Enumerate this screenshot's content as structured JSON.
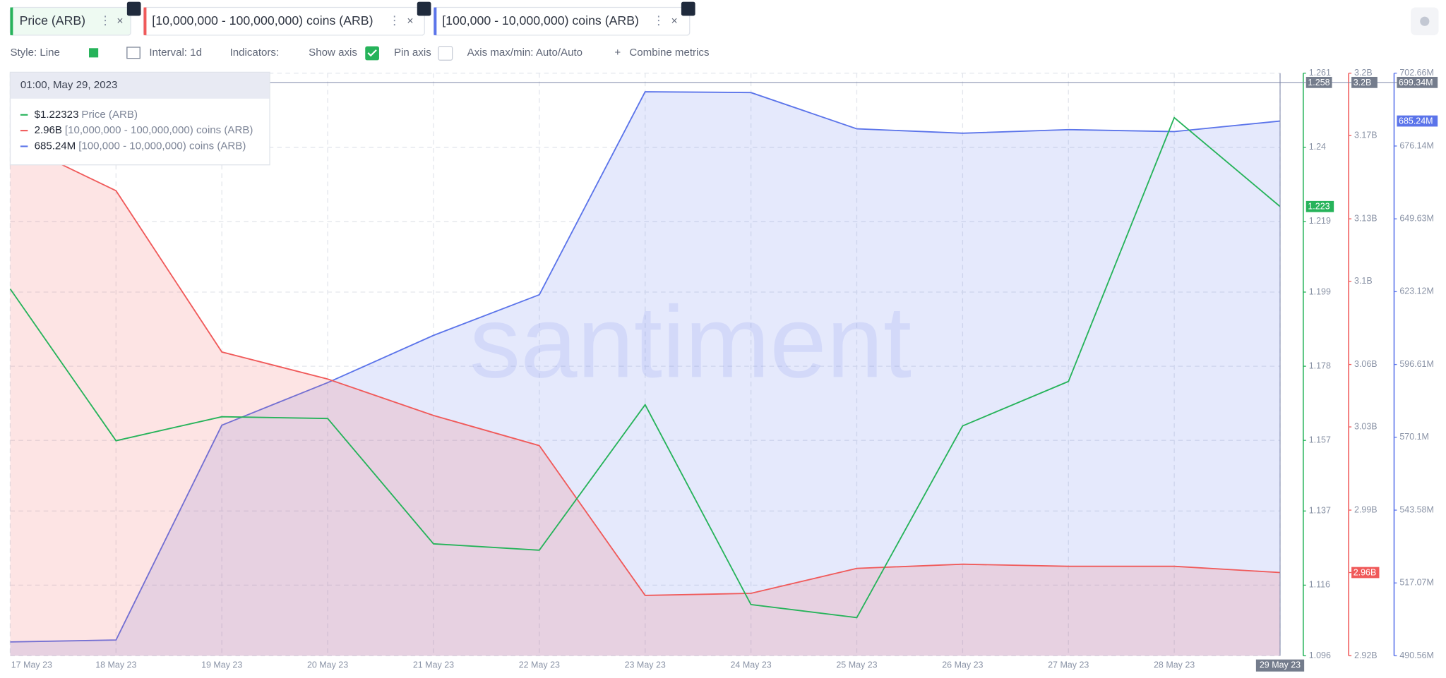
{
  "tabs": [
    "Price (ARB)",
    "[10,000,000 - 100,000,000) coins (ARB)",
    "[100,000 - 10,000,000) coins (ARB)"
  ],
  "toolbar": {
    "style": "Style: Line",
    "interval": "Interval: 1d",
    "indicators": "Indicators:",
    "show_axis": "Show axis",
    "pin_axis": "Pin axis",
    "axis_minmax": "Axis max/min: Auto/Auto",
    "combine": "Combine metrics"
  },
  "tooltip": {
    "header": "01:00, May 29, 2023",
    "values": [
      "$1.22323",
      "2.96B",
      "685.24M"
    ],
    "names": [
      "Price (ARB)",
      "[10,000,000 - 100,000,000) coins (ARB)",
      "[100,000  - 10,000,000) coins (ARB)"
    ]
  },
  "watermark": "santiment",
  "chart_data": {
    "type": "line",
    "categories": [
      "17 May 23",
      "18 May 23",
      "19 May 23",
      "20 May 23",
      "21 May 23",
      "22 May 23",
      "23 May 23",
      "24 May 23",
      "25 May 23",
      "26 May 23",
      "27 May 23",
      "28 May 23",
      "29 May 23"
    ],
    "series": [
      {
        "name": "Price (ARB)",
        "color": "#26b35a",
        "axis": "y",
        "current_label": "1.223",
        "values": [
          1.1999,
          1.1569,
          1.1637,
          1.1632,
          1.1277,
          1.1259,
          1.1671,
          1.1105,
          1.1068,
          1.1611,
          1.1737,
          1.2484,
          1.22323
        ]
      },
      {
        "name": "[10,000,000 - 100,000,000) coins (ARB)",
        "color": "#f05a5a",
        "axis": "y2",
        "area": true,
        "current_label": "2.96B",
        "values": [
          3.168,
          3.1435,
          3.066,
          3.053,
          3.0355,
          3.021,
          2.949,
          2.95,
          2.962,
          2.964,
          2.963,
          2.963,
          2.96
        ]
      },
      {
        "name": "[100,000 - 10,000,000) coins (ARB)",
        "color": "#5b74ea",
        "axis": "y3",
        "area": true,
        "current_label": "685.24M",
        "values": [
          495.6,
          496.3,
          574.5,
          590.0,
          607.2,
          622.0,
          695.9,
          695.6,
          682.4,
          680.8,
          682.1,
          681.4,
          685.24
        ]
      }
    ],
    "ylim": [
      1.096,
      1.261
    ],
    "yticks": [
      1.261,
      1.24,
      1.219,
      1.199,
      1.178,
      1.157,
      1.137,
      1.116,
      1.096
    ],
    "y2lim": [
      2.92,
      3.2
    ],
    "y2ticks": [
      {
        "value": 3.2,
        "label": "3.2B"
      },
      {
        "value": 3.17,
        "label": "3.17B"
      },
      {
        "value": 3.13,
        "label": "3.13B"
      },
      {
        "value": 3.1,
        "label": "3.1B"
      },
      {
        "value": 3.06,
        "label": "3.06B"
      },
      {
        "value": 3.03,
        "label": "3.03B"
      },
      {
        "value": 2.99,
        "label": "2.99B"
      },
      {
        "value": 2.96,
        "label": "2.96B"
      },
      {
        "value": 2.92,
        "label": "2.92B"
      }
    ],
    "y3lim": [
      490.56,
      702.66
    ],
    "y3ticks": [
      {
        "value": 702.66,
        "label": "702.66M"
      },
      {
        "value": 676.14,
        "label": "676.14M"
      },
      {
        "value": 649.63,
        "label": "649.63M"
      },
      {
        "value": 623.12,
        "label": "623.12M"
      },
      {
        "value": 596.61,
        "label": "596.61M"
      },
      {
        "value": 570.1,
        "label": "570.1M"
      },
      {
        "value": 543.58,
        "label": "543.58M"
      },
      {
        "value": 517.07,
        "label": "517.07M"
      },
      {
        "value": 490.56,
        "label": "490.56M"
      }
    ],
    "crosshair_labels": [
      "1.258",
      "3.2B",
      "699.34M"
    ],
    "grid": true
  }
}
